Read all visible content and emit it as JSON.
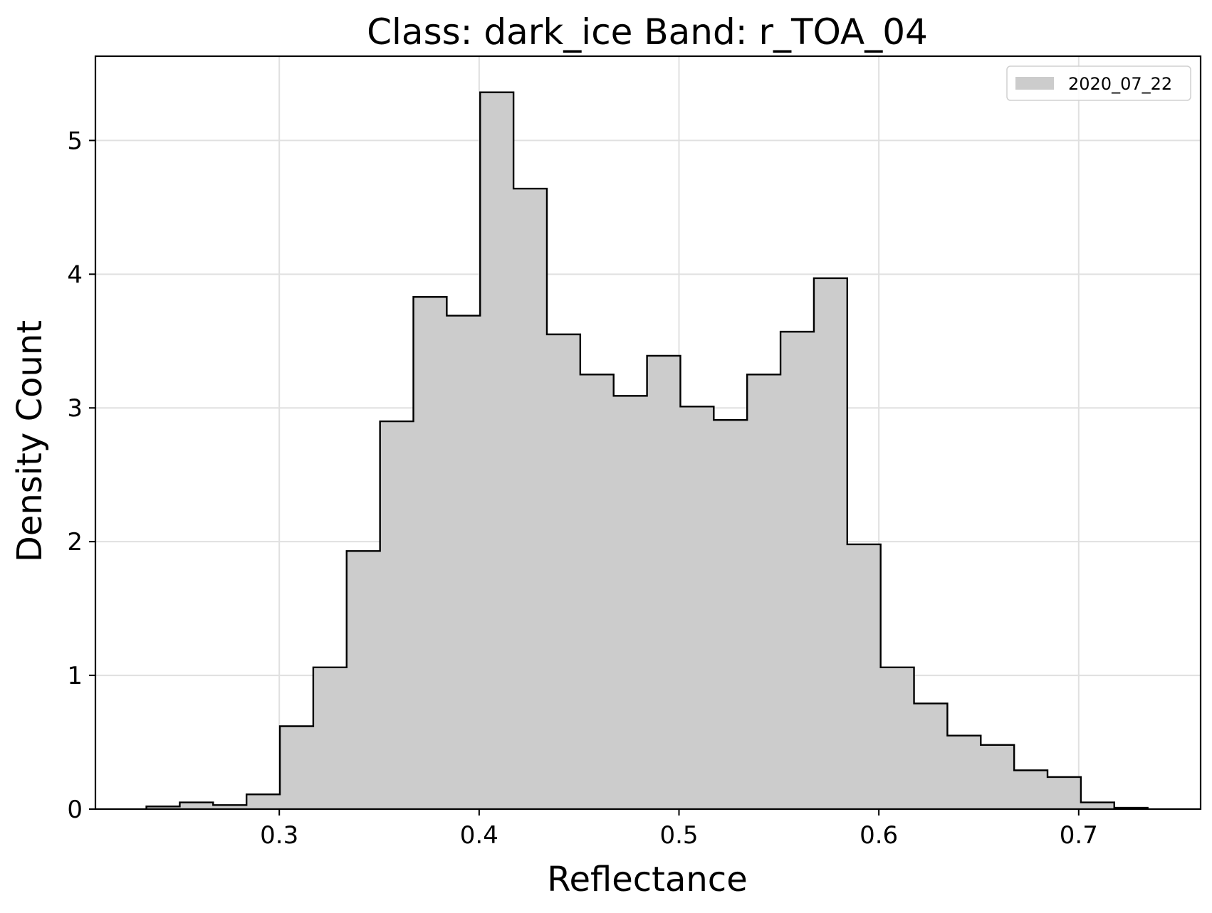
{
  "chart_data": {
    "type": "bar",
    "subtype": "step-histogram",
    "title": "Class: dark_ice Band: r_TOA_04",
    "xlabel": "Reflectance",
    "ylabel": "Density Count",
    "xlim": [
      0.208,
      0.761
    ],
    "ylim": [
      0,
      5.63
    ],
    "xticks": [
      0.3,
      0.4,
      0.5,
      0.6,
      0.7
    ],
    "xtick_labels": [
      "0.3",
      "0.4",
      "0.5",
      "0.6",
      "0.7"
    ],
    "yticks": [
      0,
      1,
      2,
      3,
      4,
      5
    ],
    "ytick_labels": [
      "0",
      "1",
      "2",
      "3",
      "4",
      "5"
    ],
    "grid": true,
    "legend": {
      "placement": "top-right",
      "entries": [
        "2020_07_22"
      ]
    },
    "series": [
      {
        "name": "2020_07_22",
        "fill_color": "#cccccc",
        "edge_color": "#000000",
        "bin_edges": [
          0.2335,
          0.2502,
          0.2669,
          0.2836,
          0.3003,
          0.317,
          0.3337,
          0.3504,
          0.3671,
          0.3838,
          0.4005,
          0.4172,
          0.4339,
          0.4506,
          0.4673,
          0.484,
          0.5007,
          0.5174,
          0.5341,
          0.5508,
          0.5675,
          0.5842,
          0.6009,
          0.6176,
          0.6343,
          0.651,
          0.6677,
          0.6844,
          0.7011,
          0.7178,
          0.7345
        ],
        "values": [
          0.02,
          0.05,
          0.03,
          0.11,
          0.62,
          1.06,
          1.93,
          2.9,
          3.83,
          3.69,
          5.36,
          4.64,
          3.55,
          3.25,
          3.09,
          3.39,
          3.01,
          2.91,
          3.25,
          3.57,
          3.97,
          1.98,
          1.06,
          0.79,
          0.55,
          0.48,
          0.29,
          0.24,
          0.05,
          0.01
        ]
      }
    ]
  }
}
